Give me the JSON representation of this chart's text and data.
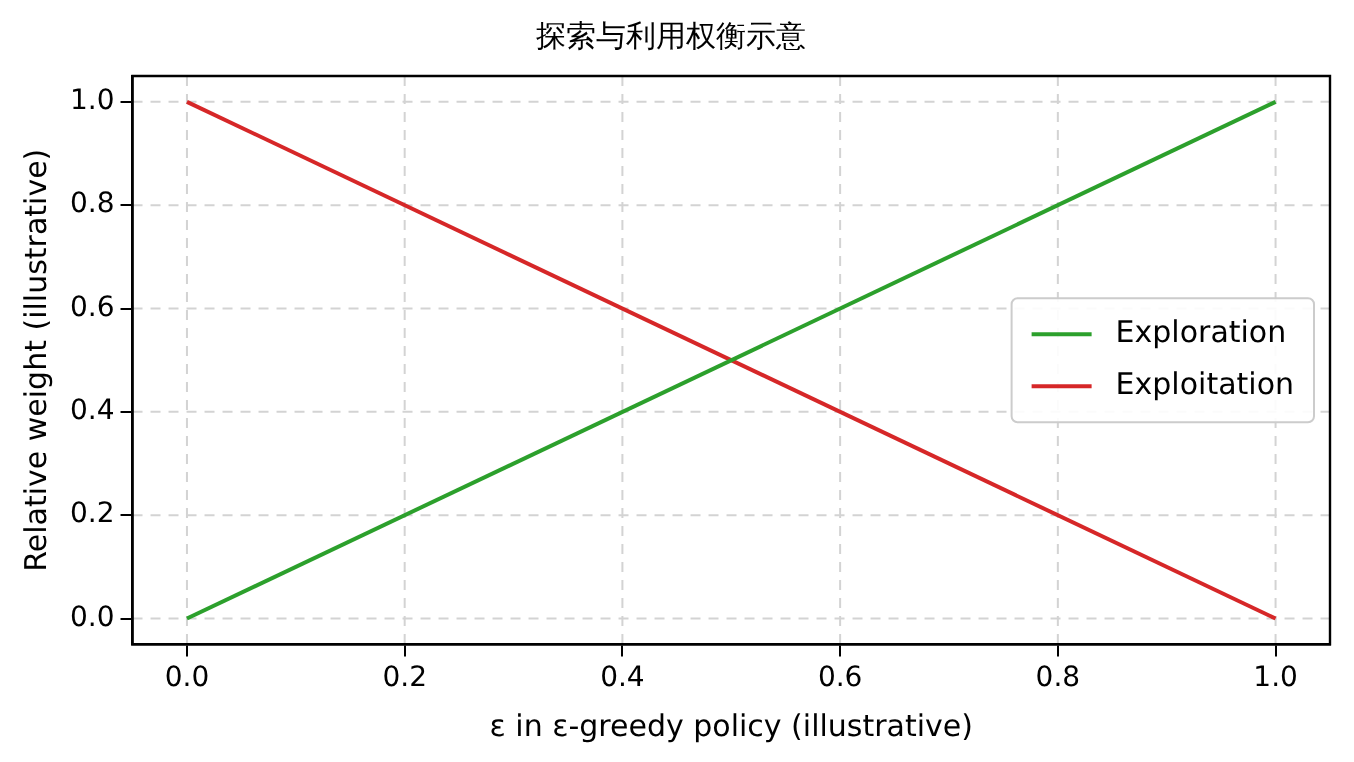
{
  "chart_data": {
    "type": "line",
    "title": "探索与利用权衡示意",
    "xlabel": "ε in ε-greedy policy (illustrative)",
    "ylabel": "Relative weight (illustrative)",
    "x": [
      0,
      1
    ],
    "series": [
      {
        "name": "Exploration",
        "color": "#2ca02c",
        "values": [
          0,
          1
        ]
      },
      {
        "name": "Exploitation",
        "color": "#d62728",
        "values": [
          1,
          0
        ]
      }
    ],
    "xlim": [
      -0.05,
      1.05
    ],
    "ylim": [
      -0.05,
      1.05
    ],
    "xticks": [
      {
        "value": 0,
        "label": "0.0"
      },
      {
        "value": 0.2,
        "label": "0.2"
      },
      {
        "value": 0.4,
        "label": "0.4"
      },
      {
        "value": 0.6,
        "label": "0.6"
      },
      {
        "value": 0.8,
        "label": "0.8"
      },
      {
        "value": 1,
        "label": "1.0"
      }
    ],
    "yticks": [
      {
        "value": 0,
        "label": "0.0"
      },
      {
        "value": 0.2,
        "label": "0.2"
      },
      {
        "value": 0.4,
        "label": "0.4"
      },
      {
        "value": 0.6,
        "label": "0.6"
      },
      {
        "value": 0.8,
        "label": "0.8"
      },
      {
        "value": 1,
        "label": "1.0"
      }
    ],
    "grid": true,
    "legend": "right",
    "marker": "none",
    "line_style": "solid"
  }
}
